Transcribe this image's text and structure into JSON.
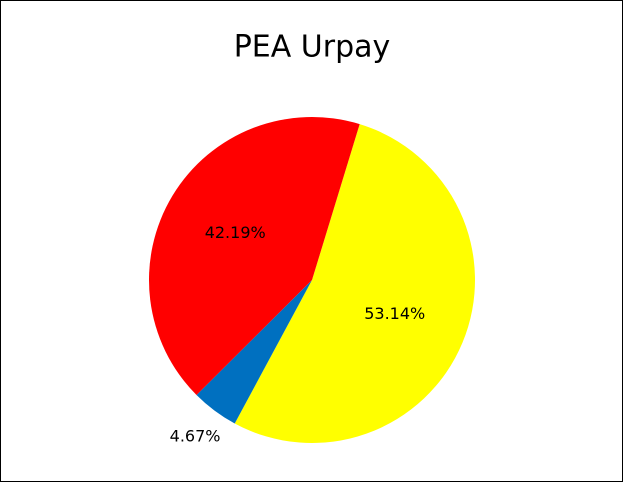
{
  "chart_data": {
    "type": "pie",
    "title": "PEA Urpay",
    "values": [
      53.14,
      4.67,
      42.19
    ],
    "value_labels": [
      "53.14%",
      "4.67%",
      "42.19%"
    ],
    "colors": [
      "#ffff00",
      "#0070c0",
      "#ff0000"
    ]
  }
}
